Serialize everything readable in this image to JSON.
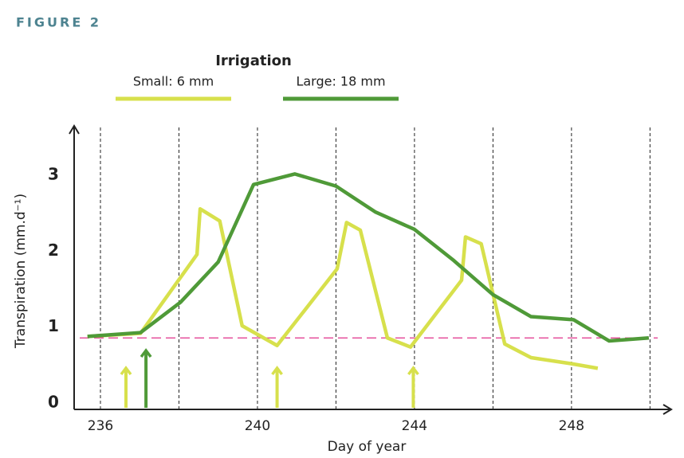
{
  "figure_label": "FIGURE 2",
  "chart_data": {
    "type": "line",
    "legend_title": "Irrigation",
    "x_label": "Day of year",
    "y_label": "Transpiration (mm.d⁻¹)",
    "xlim": [
      235.33,
      250.46
    ],
    "ylim": [
      0,
      3.7
    ],
    "xticks": [
      236,
      240,
      244,
      248
    ],
    "yticks": [
      0,
      1,
      2,
      3
    ],
    "vertical_gridlines": [
      236,
      238,
      240,
      242,
      244,
      246,
      248,
      250
    ],
    "reference_line": 0.9,
    "reference_color": "#e0308a",
    "series": [
      {
        "name": "Small: 6 mm",
        "color": "#d7e04c",
        "x": [
          235.67,
          237.02,
          238.46,
          238.54,
          239.04,
          239.61,
          240.5,
          242.03,
          242.27,
          242.62,
          243.31,
          243.9,
          245.2,
          245.3,
          245.7,
          246.3,
          246.97,
          248.0,
          248.67
        ],
        "values": [
          0.92,
          0.96,
          2.0,
          2.6,
          2.44,
          1.06,
          0.8,
          1.81,
          2.42,
          2.32,
          0.9,
          0.78,
          1.66,
          2.23,
          2.14,
          0.82,
          0.64,
          0.56,
          0.5
        ],
        "irrigation_days": [
          236.65,
          240.5,
          243.97
        ]
      },
      {
        "name": "Large: 18 mm",
        "color": "#4f9a38",
        "x": [
          235.67,
          237.02,
          238.04,
          239.0,
          239.9,
          240.95,
          242.0,
          243.0,
          244.0,
          245.0,
          246.0,
          246.97,
          248.05,
          248.96,
          249.97
        ],
        "values": [
          0.92,
          0.97,
          1.37,
          1.9,
          2.92,
          3.06,
          2.9,
          2.56,
          2.33,
          1.92,
          1.47,
          1.18,
          1.14,
          0.86,
          0.9
        ],
        "irrigation_days": [
          237.16
        ]
      }
    ]
  }
}
